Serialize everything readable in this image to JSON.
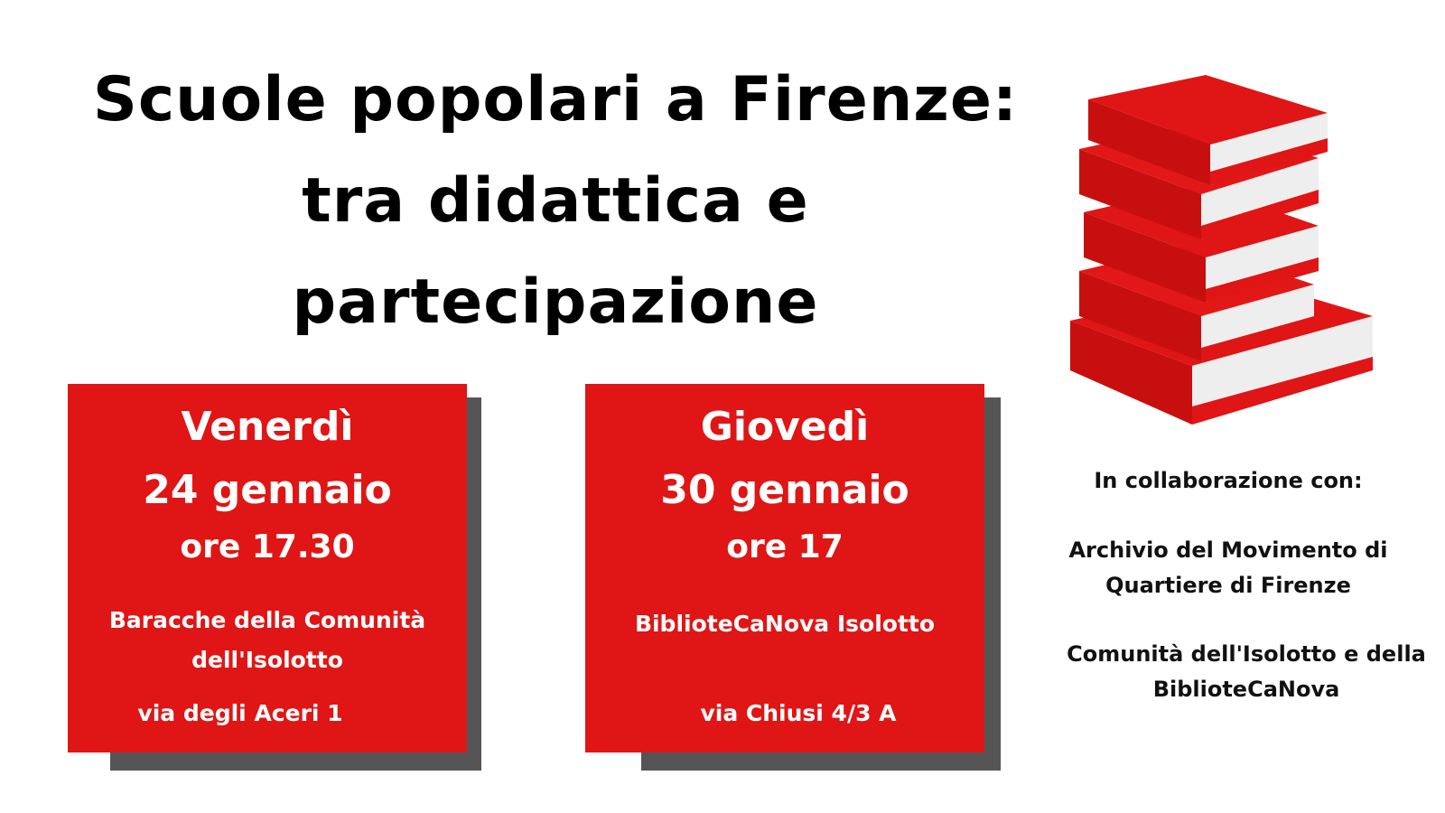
{
  "title": {
    "line1": "Scuole popolari a Firenze:",
    "line2": "tra didattica e",
    "line3": "partecipazione"
  },
  "events": [
    {
      "day": "Venerdì",
      "date": "24 gennaio",
      "time": "ore 17.30",
      "place_line1": "Baracche della Comunità",
      "place_line2": "dell'Isolotto",
      "address": "via degli Aceri 1"
    },
    {
      "day": "Giovedì",
      "date": "30 gennaio",
      "time": "ore 17",
      "place_line1": "BiblioteCaNova Isolotto",
      "place_line2": "",
      "address": "via Chiusi 4/3 A"
    }
  ],
  "collaboration": {
    "heading": "In collaborazione con:",
    "partner1_line1": "Archivio del Movimento di",
    "partner1_line2": "Quartiere di Firenze",
    "partner2_line1": "Comunità dell'Isolotto e della",
    "partner2_line2": "BiblioteCaNova"
  },
  "colors": {
    "accent": "#e01515",
    "shadow": "#555555"
  },
  "illustration": "stacked-red-books-icon"
}
